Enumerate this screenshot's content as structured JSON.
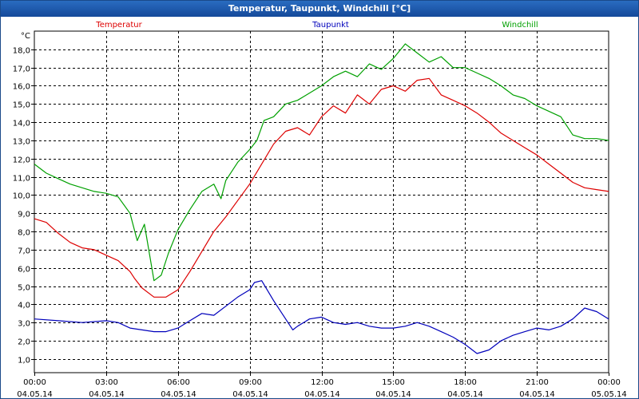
{
  "title": "Temperatur, Taupunkt, Windchill [°C]",
  "colors": {
    "temperatur": "#dd0000",
    "taupunkt": "#0000bb",
    "windchill": "#00a000",
    "grid": "#000000"
  },
  "chart_data": {
    "type": "line",
    "title": "Temperatur, Taupunkt, Windchill [°C]",
    "ylabel": "°C",
    "xlabel": "",
    "ylim": [
      0.25,
      19.0
    ],
    "xlim": [
      0,
      24
    ],
    "grid": true,
    "legend_placement": "top",
    "y_ticks": [
      1,
      2,
      3,
      4,
      5,
      6,
      7,
      8,
      9,
      10,
      11,
      12,
      13,
      14,
      15,
      16,
      17,
      18
    ],
    "y_tick_labels": [
      "1,0",
      "2,0",
      "3,0",
      "4,0",
      "5,0",
      "6,0",
      "7,0",
      "8,0",
      "9,0",
      "10,0",
      "11,0",
      "12,0",
      "13,0",
      "14,0",
      "15,0",
      "16,0",
      "17,0",
      "18,0"
    ],
    "x_ticks": [
      {
        "x": 0,
        "time": "00:00",
        "date": "04.05.14"
      },
      {
        "x": 3,
        "time": "03:00",
        "date": "04.05.14"
      },
      {
        "x": 6,
        "time": "06:00",
        "date": "04.05.14"
      },
      {
        "x": 9,
        "time": "09:00",
        "date": "04.05.14"
      },
      {
        "x": 12,
        "time": "12:00",
        "date": "04.05.14"
      },
      {
        "x": 15,
        "time": "15:00",
        "date": "04.05.14"
      },
      {
        "x": 18,
        "time": "18:00",
        "date": "04.05.14"
      },
      {
        "x": 21,
        "time": "21:00",
        "date": "04.05.14"
      },
      {
        "x": 24,
        "time": "00:00",
        "date": "05.05.14"
      }
    ],
    "x_unit": "hours",
    "series": [
      {
        "name": "Temperatur",
        "color": "#dd0000",
        "points": [
          [
            0,
            8.7
          ],
          [
            0.5,
            8.5
          ],
          [
            1,
            7.9
          ],
          [
            1.5,
            7.4
          ],
          [
            2,
            7.1
          ],
          [
            2.5,
            7.0
          ],
          [
            3,
            6.7
          ],
          [
            3.5,
            6.4
          ],
          [
            4,
            5.8
          ],
          [
            4.2,
            5.4
          ],
          [
            4.5,
            4.9
          ],
          [
            5,
            4.4
          ],
          [
            5.5,
            4.4
          ],
          [
            6,
            4.8
          ],
          [
            6.5,
            5.8
          ],
          [
            7,
            6.9
          ],
          [
            7.5,
            8.0
          ],
          [
            8,
            8.8
          ],
          [
            8.5,
            9.7
          ],
          [
            9,
            10.6
          ],
          [
            9.5,
            11.7
          ],
          [
            10,
            12.8
          ],
          [
            10.5,
            13.5
          ],
          [
            11,
            13.7
          ],
          [
            11.5,
            13.3
          ],
          [
            12,
            14.3
          ],
          [
            12.5,
            14.9
          ],
          [
            13,
            14.5
          ],
          [
            13.5,
            15.5
          ],
          [
            14,
            15.0
          ],
          [
            14.5,
            15.8
          ],
          [
            15,
            16.0
          ],
          [
            15.5,
            15.7
          ],
          [
            16,
            16.3
          ],
          [
            16.5,
            16.4
          ],
          [
            17,
            15.5
          ],
          [
            17.5,
            15.2
          ],
          [
            18,
            14.9
          ],
          [
            18.5,
            14.5
          ],
          [
            19,
            14.0
          ],
          [
            19.5,
            13.4
          ],
          [
            20,
            13.0
          ],
          [
            20.5,
            12.6
          ],
          [
            21,
            12.2
          ],
          [
            21.5,
            11.7
          ],
          [
            22,
            11.2
          ],
          [
            22.5,
            10.7
          ],
          [
            23,
            10.4
          ],
          [
            23.5,
            10.3
          ],
          [
            24,
            10.2
          ]
        ]
      },
      {
        "name": "Taupunkt",
        "color": "#0000bb",
        "points": [
          [
            0,
            3.2
          ],
          [
            1,
            3.1
          ],
          [
            2,
            3.0
          ],
          [
            3,
            3.1
          ],
          [
            3.5,
            3.0
          ],
          [
            4,
            2.7
          ],
          [
            4.5,
            2.6
          ],
          [
            5,
            2.5
          ],
          [
            5.5,
            2.5
          ],
          [
            6,
            2.7
          ],
          [
            6.5,
            3.1
          ],
          [
            7,
            3.5
          ],
          [
            7.5,
            3.4
          ],
          [
            8,
            3.9
          ],
          [
            8.5,
            4.4
          ],
          [
            9,
            4.8
          ],
          [
            9.2,
            5.2
          ],
          [
            9.5,
            5.3
          ],
          [
            10,
            4.2
          ],
          [
            10.5,
            3.2
          ],
          [
            10.8,
            2.6
          ],
          [
            11,
            2.8
          ],
          [
            11.5,
            3.2
          ],
          [
            12,
            3.3
          ],
          [
            12.5,
            3.0
          ],
          [
            13,
            2.9
          ],
          [
            13.5,
            3.0
          ],
          [
            14,
            2.8
          ],
          [
            14.5,
            2.7
          ],
          [
            15,
            2.7
          ],
          [
            15.5,
            2.8
          ],
          [
            16,
            3.0
          ],
          [
            16.5,
            2.8
          ],
          [
            17,
            2.5
          ],
          [
            17.5,
            2.2
          ],
          [
            18,
            1.8
          ],
          [
            18.5,
            1.3
          ],
          [
            19,
            1.5
          ],
          [
            19.5,
            2.0
          ],
          [
            20,
            2.3
          ],
          [
            20.5,
            2.5
          ],
          [
            21,
            2.7
          ],
          [
            21.5,
            2.6
          ],
          [
            22,
            2.8
          ],
          [
            22.5,
            3.2
          ],
          [
            23,
            3.8
          ],
          [
            23.5,
            3.6
          ],
          [
            24,
            3.2
          ]
        ]
      },
      {
        "name": "Windchill",
        "color": "#00a000",
        "points": [
          [
            0,
            11.7
          ],
          [
            0.5,
            11.2
          ],
          [
            1,
            10.9
          ],
          [
            1.5,
            10.6
          ],
          [
            2,
            10.4
          ],
          [
            2.5,
            10.2
          ],
          [
            3,
            10.1
          ],
          [
            3.5,
            9.9
          ],
          [
            4,
            9.0
          ],
          [
            4.3,
            7.5
          ],
          [
            4.6,
            8.4
          ],
          [
            5,
            5.3
          ],
          [
            5.3,
            5.6
          ],
          [
            5.6,
            6.8
          ],
          [
            6,
            8.1
          ],
          [
            6.5,
            9.2
          ],
          [
            7,
            10.2
          ],
          [
            7.5,
            10.6
          ],
          [
            7.8,
            9.8
          ],
          [
            8,
            10.8
          ],
          [
            8.5,
            11.8
          ],
          [
            9,
            12.5
          ],
          [
            9.3,
            13.0
          ],
          [
            9.6,
            14.1
          ],
          [
            10,
            14.3
          ],
          [
            10.5,
            15.0
          ],
          [
            11,
            15.2
          ],
          [
            11.5,
            15.6
          ],
          [
            12,
            16.0
          ],
          [
            12.5,
            16.5
          ],
          [
            13,
            16.8
          ],
          [
            13.5,
            16.5
          ],
          [
            14,
            17.2
          ],
          [
            14.5,
            16.9
          ],
          [
            15,
            17.5
          ],
          [
            15.5,
            18.3
          ],
          [
            16,
            17.8
          ],
          [
            16.5,
            17.3
          ],
          [
            17,
            17.6
          ],
          [
            17.5,
            17.0
          ],
          [
            18,
            17.0
          ],
          [
            18.5,
            16.7
          ],
          [
            19,
            16.4
          ],
          [
            19.5,
            16.0
          ],
          [
            20,
            15.5
          ],
          [
            20.5,
            15.3
          ],
          [
            21,
            14.9
          ],
          [
            21.5,
            14.6
          ],
          [
            22,
            14.3
          ],
          [
            22.5,
            13.3
          ],
          [
            23,
            13.1
          ],
          [
            23.5,
            13.1
          ],
          [
            24,
            13.0
          ]
        ]
      }
    ]
  }
}
